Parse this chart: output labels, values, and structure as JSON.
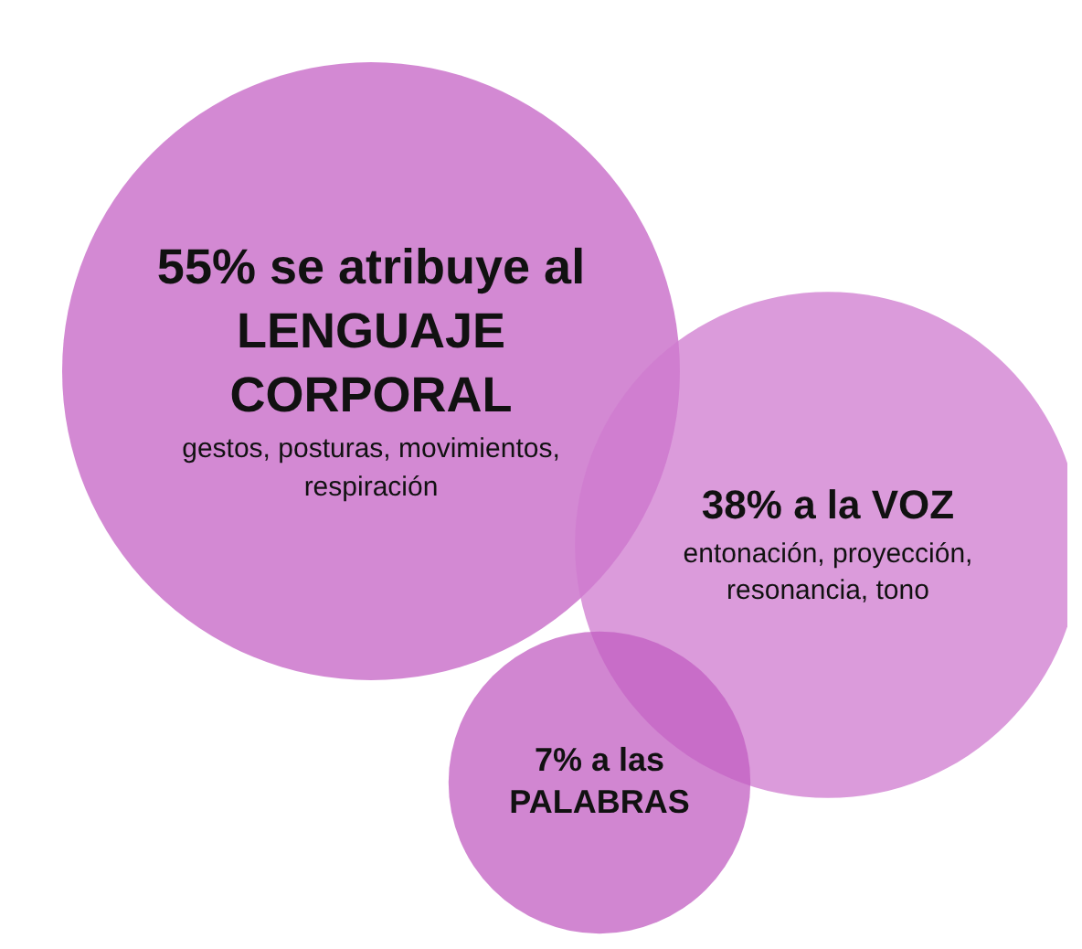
{
  "chart_data": {
    "type": "other",
    "categories": [
      "se atribuye al LENGUAJE CORPORAL",
      "a la VOZ",
      "a las PALABRAS"
    ],
    "value_labels": [
      "55%",
      "38%",
      "7%"
    ],
    "values": [
      55,
      38,
      7
    ],
    "colors": [
      "#c462c4",
      "#cf7acf",
      "#c25ec2"
    ],
    "annotations": [
      "gestos, posturas, movimientos, respiración",
      "entonación, proyección, resonancia, tono"
    ]
  }
}
